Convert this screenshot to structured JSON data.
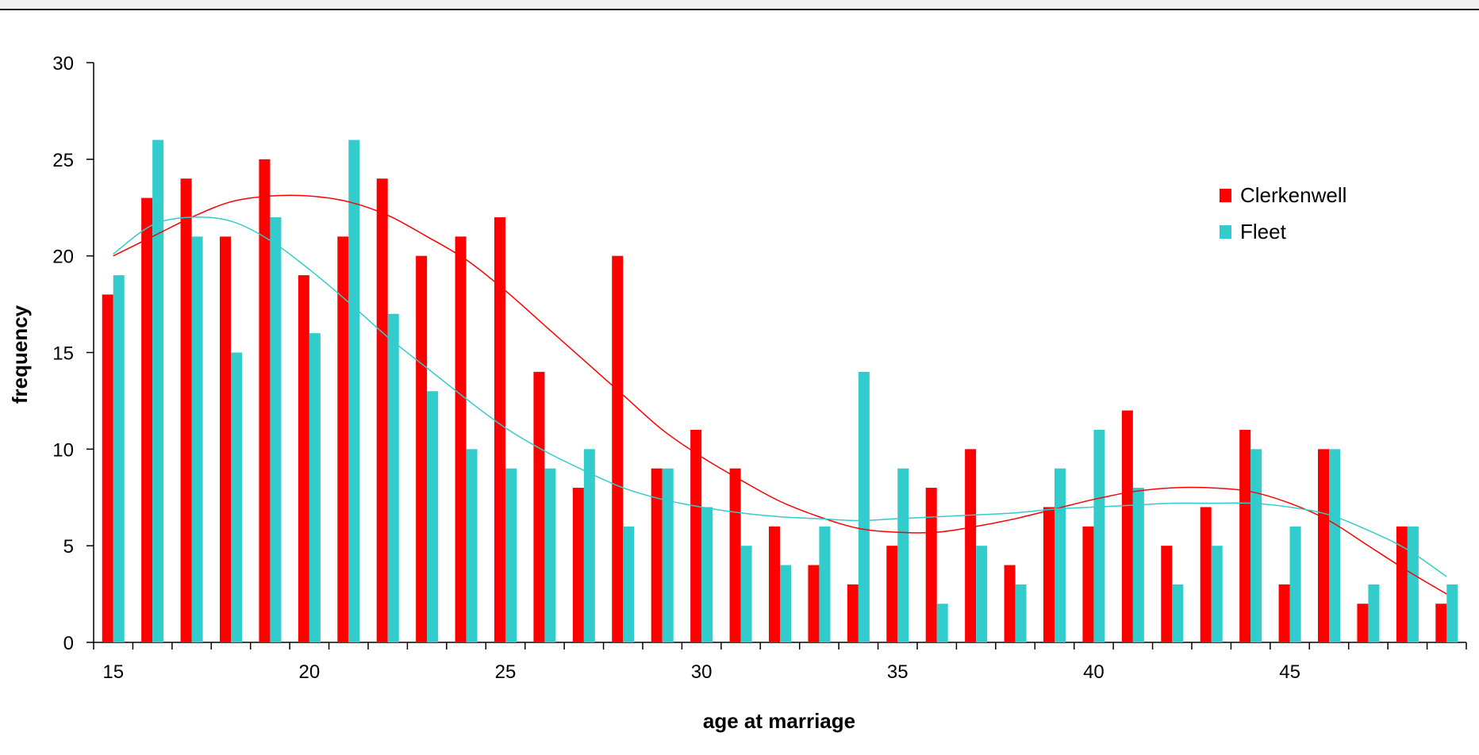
{
  "chart_data": {
    "type": "bar",
    "xlabel": "age at marriage",
    "ylabel": "frequency",
    "ylim": [
      0,
      30
    ],
    "yticks": [
      0,
      5,
      10,
      15,
      20,
      25,
      30
    ],
    "xticks": [
      "15",
      "20",
      "25",
      "30",
      "35",
      "40",
      "45"
    ],
    "categories": [
      15,
      16,
      17,
      18,
      19,
      20,
      21,
      22,
      23,
      24,
      25,
      26,
      27,
      28,
      29,
      30,
      31,
      32,
      33,
      34,
      35,
      36,
      37,
      38,
      39,
      40,
      41,
      42,
      43,
      44,
      45,
      46,
      47,
      48,
      49
    ],
    "series": [
      {
        "name": "Clerkenwell",
        "color": "#ff0000",
        "values": [
          18,
          23,
          24,
          21,
          25,
          19,
          21,
          24,
          20,
          21,
          22,
          14,
          8,
          20,
          9,
          11,
          9,
          6,
          4,
          3,
          5,
          8,
          10,
          4,
          7,
          6,
          12,
          5,
          7,
          11,
          3,
          10,
          2,
          6,
          2
        ]
      },
      {
        "name": "Fleet",
        "color": "#33cccc",
        "values": [
          19,
          26,
          21,
          15,
          22,
          16,
          26,
          17,
          13,
          10,
          9,
          9,
          10,
          6,
          9,
          7,
          5,
          4,
          6,
          14,
          9,
          2,
          5,
          3,
          9,
          11,
          8,
          3,
          5,
          10,
          6,
          10,
          3,
          6,
          3
        ]
      }
    ],
    "trendlines": [
      {
        "series": "Clerkenwell",
        "color": "#ff0000",
        "points": [
          [
            15,
            20
          ],
          [
            16,
            21
          ],
          [
            17,
            22
          ],
          [
            18,
            22.8
          ],
          [
            19,
            23.1
          ],
          [
            20,
            23.1
          ],
          [
            21,
            22.8
          ],
          [
            22,
            22.1
          ],
          [
            23,
            21
          ],
          [
            24,
            19.8
          ],
          [
            25,
            18.2
          ],
          [
            26,
            16.4
          ],
          [
            27,
            14.6
          ],
          [
            28,
            12.8
          ],
          [
            29,
            11
          ],
          [
            30,
            9.6
          ],
          [
            31,
            8.4
          ],
          [
            32,
            7.3
          ],
          [
            33,
            6.5
          ],
          [
            34,
            5.9
          ],
          [
            35,
            5.7
          ],
          [
            36,
            5.7
          ],
          [
            37,
            6
          ],
          [
            38,
            6.4
          ],
          [
            39,
            6.9
          ],
          [
            40,
            7.4
          ],
          [
            41,
            7.8
          ],
          [
            42,
            8
          ],
          [
            43,
            8
          ],
          [
            44,
            7.8
          ],
          [
            45,
            7.2
          ],
          [
            46,
            6.3
          ],
          [
            47,
            5
          ],
          [
            48,
            3.7
          ],
          [
            49,
            2.5
          ]
        ]
      },
      {
        "series": "Fleet",
        "color": "#33cccc",
        "points": [
          [
            15,
            20.1
          ],
          [
            16,
            21.6
          ],
          [
            17,
            22
          ],
          [
            18,
            21.8
          ],
          [
            19,
            20.8
          ],
          [
            20,
            19.3
          ],
          [
            21,
            17.6
          ],
          [
            22,
            15.8
          ],
          [
            23,
            14.2
          ],
          [
            24,
            12.6
          ],
          [
            25,
            11.1
          ],
          [
            26,
            9.9
          ],
          [
            27,
            8.9
          ],
          [
            28,
            8
          ],
          [
            29,
            7.4
          ],
          [
            30,
            7
          ],
          [
            31,
            6.7
          ],
          [
            32,
            6.5
          ],
          [
            33,
            6.4
          ],
          [
            34,
            6.3
          ],
          [
            35,
            6.4
          ],
          [
            36,
            6.5
          ],
          [
            37,
            6.6
          ],
          [
            38,
            6.7
          ],
          [
            39,
            6.9
          ],
          [
            40,
            7
          ],
          [
            41,
            7.1
          ],
          [
            42,
            7.2
          ],
          [
            43,
            7.2
          ],
          [
            44,
            7.2
          ],
          [
            45,
            7
          ],
          [
            46,
            6.6
          ],
          [
            47,
            5.8
          ],
          [
            48,
            4.8
          ],
          [
            49,
            3.4
          ]
        ]
      }
    ],
    "legend_position": "top-right",
    "grid": false
  }
}
